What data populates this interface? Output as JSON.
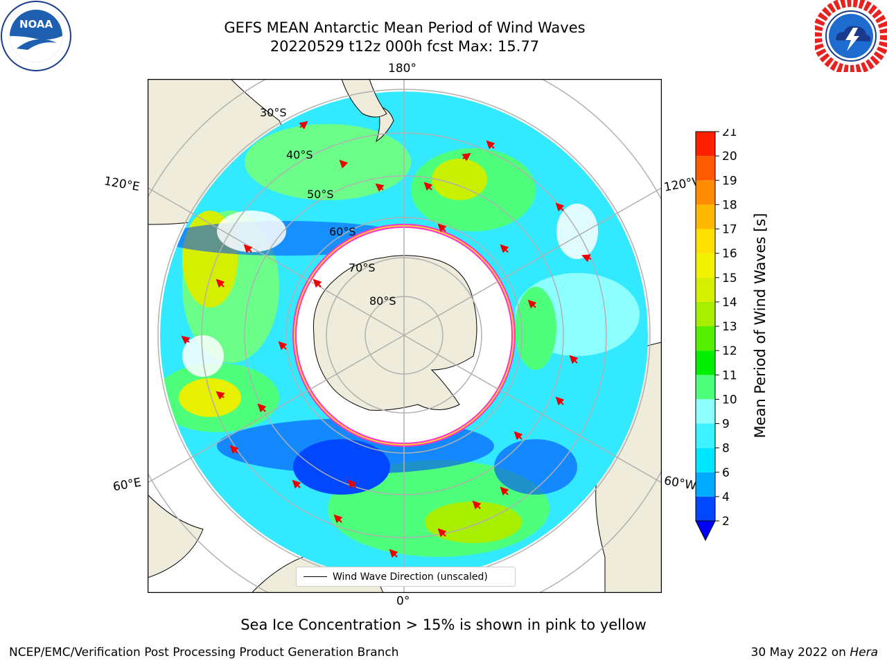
{
  "title": {
    "line1": "GEFS MEAN Antarctic Mean Period of Wind Waves",
    "line2": "20220529 t12z 000h fcst   Max: 15.77"
  },
  "logos": {
    "left": {
      "name": "NOAA",
      "text": "NOAA"
    },
    "right": {
      "name": "NATIONAL WEATHER SERVICE"
    }
  },
  "map": {
    "longitude_labels": {
      "top": "180°",
      "bottom": "0°",
      "upper_left": "120°E",
      "lower_left": "60°E",
      "upper_right": "120°W",
      "lower_right": "60°W"
    },
    "latitude_labels": [
      "30°S",
      "40°S",
      "50°S",
      "60°S",
      "70°S",
      "80°S"
    ],
    "legend_label": "Wind Wave Direction (unscaled)"
  },
  "colorbar": {
    "label": "Mean Period of Wind Waves [s]",
    "ticks": [
      "2",
      "4",
      "6",
      "8",
      "9",
      "10",
      "11",
      "12",
      "13",
      "14",
      "15",
      "16",
      "17",
      "18",
      "19",
      "20",
      "21"
    ],
    "colors": [
      "#0047ff",
      "#00aaff",
      "#00e6ff",
      "#3df2ff",
      "#8dffff",
      "#4dff7a",
      "#00ee00",
      "#55ee00",
      "#a8ee00",
      "#d4f000",
      "#f2f200",
      "#ffe000",
      "#ffb800",
      "#ff8c00",
      "#ff5a00",
      "#ff2000"
    ],
    "under_color": "#0000ff"
  },
  "caption": "Sea Ice Concentration > 15% is shown in pink to yellow",
  "footer": {
    "left": "NCEP/EMC/Verification Post Processing Product Generation Branch",
    "date": "30 May 2022 on ",
    "host": "Hera"
  }
}
